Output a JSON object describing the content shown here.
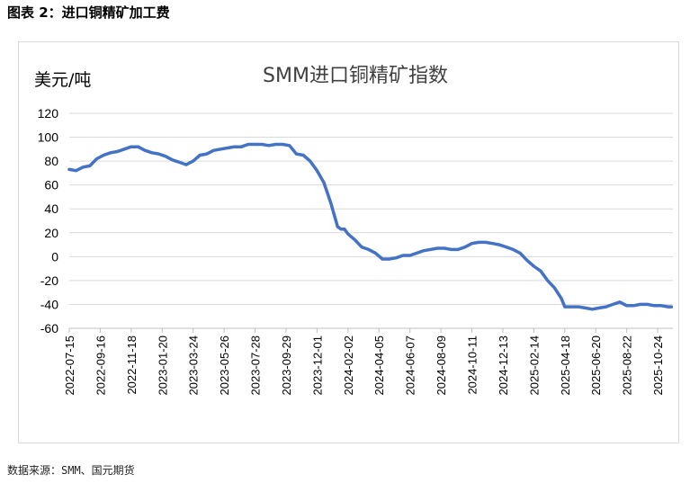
{
  "figure_caption": "图表 2：进口铜精矿加工费",
  "source_note": "数据来源：SMM、国元期货",
  "chart_data": {
    "type": "line",
    "title": "SMM进口铜精矿指数",
    "ylabel": "美元/吨",
    "xlabel": "",
    "ylim": [
      -60,
      120
    ],
    "yticks": [
      120,
      100,
      80,
      60,
      40,
      20,
      0,
      -20,
      -40,
      -60
    ],
    "grid": true,
    "legend": "none",
    "color": "#4472c4",
    "x_tick_labels": [
      "2022-07-15",
      "2022-09-16",
      "2022-11-18",
      "2023-01-20",
      "2023-03-24",
      "2023-05-26",
      "2023-07-28",
      "2023-09-29",
      "2023-12-01",
      "2024-02-02",
      "2024-04-05",
      "2024-06-07",
      "2024-08-09",
      "2024-10-11",
      "2024-12-13",
      "2025-02-14",
      "2025-04-18",
      "2025-06-20",
      "2025-08-22",
      "2025-10-24"
    ],
    "series": [
      {
        "x": [
          "2022-07-15",
          "2022-07-29",
          "2022-08-12",
          "2022-08-26",
          "2022-09-09",
          "2022-09-23",
          "2022-10-07",
          "2022-10-21",
          "2022-11-04",
          "2022-11-18",
          "2022-12-02",
          "2022-12-16",
          "2022-12-30",
          "2023-01-13",
          "2023-01-27",
          "2023-02-10",
          "2023-02-24",
          "2023-03-10",
          "2023-03-24",
          "2023-04-07",
          "2023-04-21",
          "2023-05-05",
          "2023-05-19",
          "2023-06-02",
          "2023-06-16",
          "2023-06-30",
          "2023-07-14",
          "2023-07-28",
          "2023-08-11",
          "2023-08-25",
          "2023-09-08",
          "2023-09-22",
          "2023-10-06",
          "2023-10-20",
          "2023-11-03",
          "2023-11-17",
          "2023-12-01",
          "2023-12-15",
          "2023-12-29",
          "2024-01-12",
          "2024-01-19",
          "2024-01-26",
          "2024-02-02",
          "2024-02-16",
          "2024-03-01",
          "2024-03-15",
          "2024-03-29",
          "2024-04-12",
          "2024-04-26",
          "2024-05-10",
          "2024-05-24",
          "2024-06-07",
          "2024-06-21",
          "2024-07-05",
          "2024-07-19",
          "2024-08-02",
          "2024-08-16",
          "2024-08-30",
          "2024-09-13",
          "2024-09-27",
          "2024-10-11",
          "2024-10-25",
          "2024-11-08",
          "2024-11-22",
          "2024-12-06",
          "2024-12-20",
          "2025-01-03",
          "2025-01-17",
          "2025-01-31",
          "2025-02-14",
          "2025-02-28",
          "2025-03-14",
          "2025-03-28",
          "2025-04-11",
          "2025-04-18",
          "2025-05-02",
          "2025-05-16",
          "2025-05-30",
          "2025-06-13",
          "2025-06-27",
          "2025-07-11",
          "2025-07-25",
          "2025-08-08",
          "2025-08-22",
          "2025-09-05",
          "2025-09-19",
          "2025-10-03",
          "2025-10-17",
          "2025-10-31",
          "2025-11-14",
          "2025-11-21"
        ],
        "values": [
          73,
          72,
          75,
          76,
          82,
          85,
          87,
          88,
          90,
          92,
          92,
          89,
          87,
          86,
          84,
          81,
          79,
          77,
          80,
          85,
          86,
          89,
          90,
          91,
          92,
          92,
          94,
          94,
          94,
          93,
          94,
          94,
          93,
          86,
          85,
          80,
          72,
          62,
          45,
          25,
          23,
          23,
          19,
          14,
          8,
          6,
          3,
          -2,
          -2,
          -1,
          1,
          1,
          3,
          5,
          6,
          7,
          7,
          6,
          6,
          8,
          11,
          12,
          12,
          11,
          10,
          8,
          6,
          3,
          -3,
          -8,
          -12,
          -20,
          -26,
          -35,
          -42,
          -42,
          -42,
          -43,
          -44,
          -43,
          -42,
          -40,
          -38,
          -41,
          -41,
          -40,
          -40,
          -41,
          -41,
          -42,
          -42
        ]
      }
    ]
  }
}
